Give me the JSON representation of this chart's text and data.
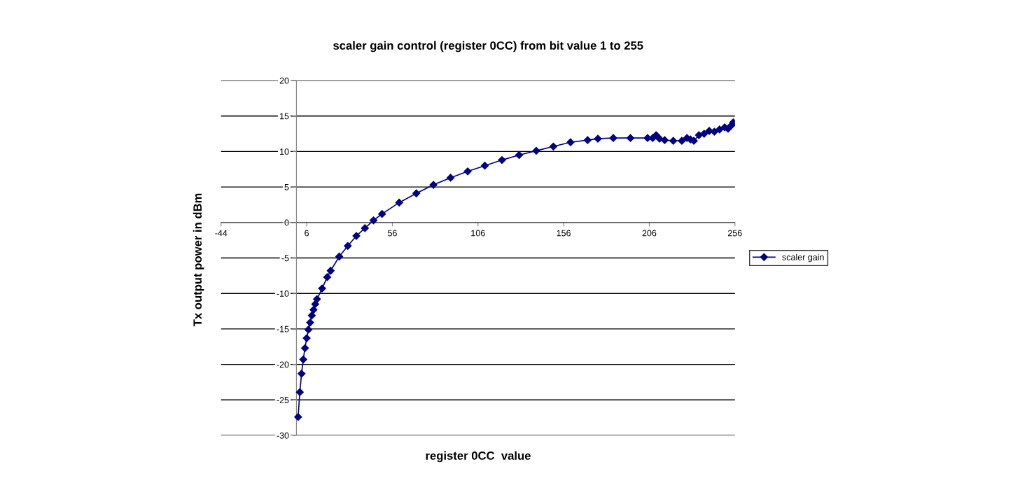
{
  "chart_data": {
    "type": "line",
    "title": "scaler gain control (register 0CC) from bit value 1 to 255",
    "xlabel": "register 0CC  value",
    "ylabel": "Tx output power in dBm",
    "xlim": [
      -44,
      256
    ],
    "xticks": [
      -44,
      6,
      56,
      106,
      156,
      206,
      256
    ],
    "ylim": [
      -30,
      20
    ],
    "yticks": [
      -30,
      -25,
      -20,
      -15,
      -10,
      -5,
      0,
      5,
      10,
      15,
      20
    ],
    "grid": "y",
    "legend": "right",
    "marker": "diamond",
    "line_style": "solid",
    "series": [
      {
        "name": "scaler gain",
        "color": "#000080",
        "x": [
          1,
          2,
          3,
          4,
          5,
          6,
          7,
          8,
          9,
          10,
          11,
          12,
          15,
          18,
          20,
          25,
          30,
          35,
          40,
          45,
          50,
          60,
          70,
          80,
          90,
          100,
          110,
          120,
          130,
          140,
          150,
          160,
          170,
          176,
          185,
          195,
          205,
          208,
          210,
          212,
          215,
          220,
          225,
          228,
          230,
          232,
          235,
          238,
          241,
          244,
          247,
          250,
          252,
          254,
          255
        ],
        "values": [
          -27.4,
          -23.9,
          -21.3,
          -19.3,
          -17.7,
          -16.3,
          -15.1,
          -14.1,
          -13.1,
          -12.3,
          -11.5,
          -10.8,
          -9.3,
          -7.7,
          -6.8,
          -4.8,
          -3.3,
          -1.9,
          -0.8,
          0.3,
          1.2,
          2.8,
          4.1,
          5.3,
          6.3,
          7.2,
          8.0,
          8.8,
          9.5,
          10.1,
          10.7,
          11.3,
          11.6,
          11.8,
          11.9,
          11.9,
          11.9,
          11.9,
          12.3,
          11.8,
          11.6,
          11.5,
          11.5,
          11.9,
          11.7,
          11.5,
          12.3,
          12.5,
          12.9,
          12.8,
          13.1,
          13.4,
          13.2,
          13.7,
          14.1
        ]
      }
    ]
  }
}
